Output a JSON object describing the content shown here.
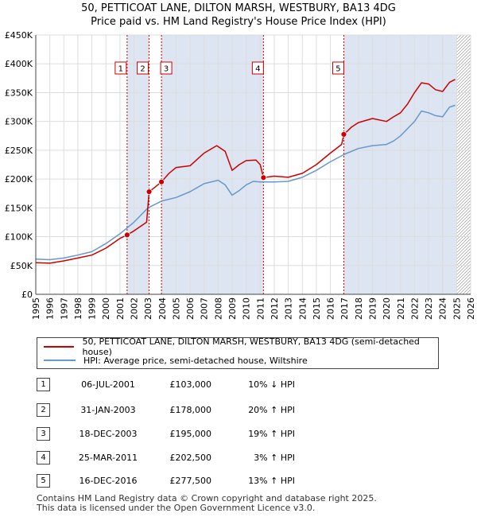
{
  "header": {
    "title": "50, PETTICOAT LANE, DILTON MARSH, WESTBURY, BA13 4DG",
    "subtitle": "Price paid vs. HM Land Registry's House Price Index (HPI)"
  },
  "legend": {
    "property_label": "50, PETTICOAT LANE, DILTON MARSH, WESTBURY, BA13 4DG (semi-detached house)",
    "hpi_label": "HPI: Average price, semi-detached house, Wiltshire"
  },
  "colors": {
    "property": "#cc0000",
    "hpi": "#6699cc",
    "shade": "#dde4f2",
    "grid": "#dddddd"
  },
  "transactions": [
    {
      "num": "1",
      "date": "06-JUL-2001",
      "price": "£103,000",
      "hpi": "10% ↓ HPI"
    },
    {
      "num": "2",
      "date": "31-JAN-2003",
      "price": "£178,000",
      "hpi": "20% ↑ HPI"
    },
    {
      "num": "3",
      "date": "18-DEC-2003",
      "price": "£195,000",
      "hpi": "19% ↑ HPI"
    },
    {
      "num": "4",
      "date": "25-MAR-2011",
      "price": "£202,500",
      "hpi": "3% ↑ HPI"
    },
    {
      "num": "5",
      "date": "16-DEC-2016",
      "price": "£277,500",
      "hpi": "13% ↑ HPI"
    }
  ],
  "footer": {
    "line1": "Contains HM Land Registry data © Crown copyright and database right 2025.",
    "line2": "This data is licensed under the Open Government Licence v3.0."
  },
  "chart_data": {
    "type": "line",
    "title": "50, PETTICOAT LANE, DILTON MARSH, WESTBURY, BA13 4DG",
    "subtitle": "Price paid vs. HM Land Registry's House Price Index (HPI)",
    "xlim": [
      1995,
      2026
    ],
    "ylim": [
      0,
      450000
    ],
    "x_ticks": [
      "1995",
      "1996",
      "1997",
      "1998",
      "1999",
      "2000",
      "2001",
      "2002",
      "2003",
      "2004",
      "2005",
      "2006",
      "2007",
      "2008",
      "2009",
      "2010",
      "2011",
      "2012",
      "2013",
      "2014",
      "2015",
      "2016",
      "2017",
      "2018",
      "2019",
      "2020",
      "2021",
      "2022",
      "2023",
      "2024",
      "2025",
      "2026"
    ],
    "y_ticks": [
      {
        "v": 0,
        "label": "£0"
      },
      {
        "v": 50000,
        "label": "£50K"
      },
      {
        "v": 100000,
        "label": "£100K"
      },
      {
        "v": 150000,
        "label": "£150K"
      },
      {
        "v": 200000,
        "label": "£200K"
      },
      {
        "v": 250000,
        "label": "£250K"
      },
      {
        "v": 300000,
        "label": "£300K"
      },
      {
        "v": 350000,
        "label": "£350K"
      },
      {
        "v": 400000,
        "label": "£400K"
      },
      {
        "v": 450000,
        "label": "£450K"
      }
    ],
    "shaded_ranges": [
      [
        2001.51,
        2003.08
      ],
      [
        2003.96,
        2011.23
      ],
      [
        2016.96,
        2025.0
      ]
    ],
    "hatched_from": 2025.0,
    "sales": [
      {
        "num": "1",
        "x": 2001.51,
        "y": 103000
      },
      {
        "num": "2",
        "x": 2003.08,
        "y": 178000
      },
      {
        "num": "3",
        "x": 2003.96,
        "y": 195000
      },
      {
        "num": "4",
        "x": 2011.23,
        "y": 202500
      },
      {
        "num": "5",
        "x": 2016.96,
        "y": 277500
      }
    ],
    "series": [
      {
        "name": "50, PETTICOAT LANE, DILTON MARSH, WESTBURY, BA13 4DG (semi-detached house)",
        "color": "#cc0000",
        "points": [
          [
            1995,
            55000
          ],
          [
            1996,
            54000
          ],
          [
            1997,
            58000
          ],
          [
            1998,
            63000
          ],
          [
            1999,
            68000
          ],
          [
            2000,
            80000
          ],
          [
            2001,
            97000
          ],
          [
            2001.51,
            103000
          ],
          [
            2002,
            110000
          ],
          [
            2002.9,
            125000
          ],
          [
            2003.08,
            178000
          ],
          [
            2003.5,
            186000
          ],
          [
            2003.96,
            195000
          ],
          [
            2004.5,
            210000
          ],
          [
            2005,
            220000
          ],
          [
            2006,
            223000
          ],
          [
            2007,
            245000
          ],
          [
            2007.9,
            258000
          ],
          [
            2008.5,
            248000
          ],
          [
            2009,
            215000
          ],
          [
            2009.5,
            225000
          ],
          [
            2010,
            232000
          ],
          [
            2010.7,
            233000
          ],
          [
            2011,
            225000
          ],
          [
            2011.23,
            202500
          ],
          [
            2012,
            205000
          ],
          [
            2013,
            203000
          ],
          [
            2014,
            210000
          ],
          [
            2015,
            225000
          ],
          [
            2016,
            245000
          ],
          [
            2016.8,
            260000
          ],
          [
            2016.96,
            277500
          ],
          [
            2017.5,
            290000
          ],
          [
            2018,
            298000
          ],
          [
            2019,
            305000
          ],
          [
            2020,
            300000
          ],
          [
            2020.5,
            308000
          ],
          [
            2021,
            315000
          ],
          [
            2021.5,
            330000
          ],
          [
            2022,
            350000
          ],
          [
            2022.5,
            367000
          ],
          [
            2023,
            365000
          ],
          [
            2023.5,
            355000
          ],
          [
            2024,
            352000
          ],
          [
            2024.5,
            368000
          ],
          [
            2024.9,
            373000
          ]
        ]
      },
      {
        "name": "HPI: Average price, semi-detached house, Wiltshire",
        "color": "#6699cc",
        "points": [
          [
            1995,
            61000
          ],
          [
            1996,
            60000
          ],
          [
            1997,
            63000
          ],
          [
            1998,
            68000
          ],
          [
            1999,
            74000
          ],
          [
            2000,
            88000
          ],
          [
            2001,
            105000
          ],
          [
            2002,
            125000
          ],
          [
            2003,
            150000
          ],
          [
            2004,
            162000
          ],
          [
            2005,
            168000
          ],
          [
            2006,
            178000
          ],
          [
            2007,
            192000
          ],
          [
            2008,
            198000
          ],
          [
            2008.5,
            190000
          ],
          [
            2009,
            172000
          ],
          [
            2009.5,
            180000
          ],
          [
            2010,
            190000
          ],
          [
            2010.5,
            196000
          ],
          [
            2011,
            195000
          ],
          [
            2012,
            195000
          ],
          [
            2013,
            196000
          ],
          [
            2014,
            203000
          ],
          [
            2015,
            215000
          ],
          [
            2016,
            230000
          ],
          [
            2017,
            243000
          ],
          [
            2018,
            253000
          ],
          [
            2019,
            258000
          ],
          [
            2020,
            260000
          ],
          [
            2020.5,
            266000
          ],
          [
            2021,
            275000
          ],
          [
            2022,
            300000
          ],
          [
            2022.5,
            318000
          ],
          [
            2023,
            315000
          ],
          [
            2023.5,
            310000
          ],
          [
            2024,
            308000
          ],
          [
            2024.5,
            325000
          ],
          [
            2024.9,
            328000
          ]
        ]
      }
    ]
  }
}
